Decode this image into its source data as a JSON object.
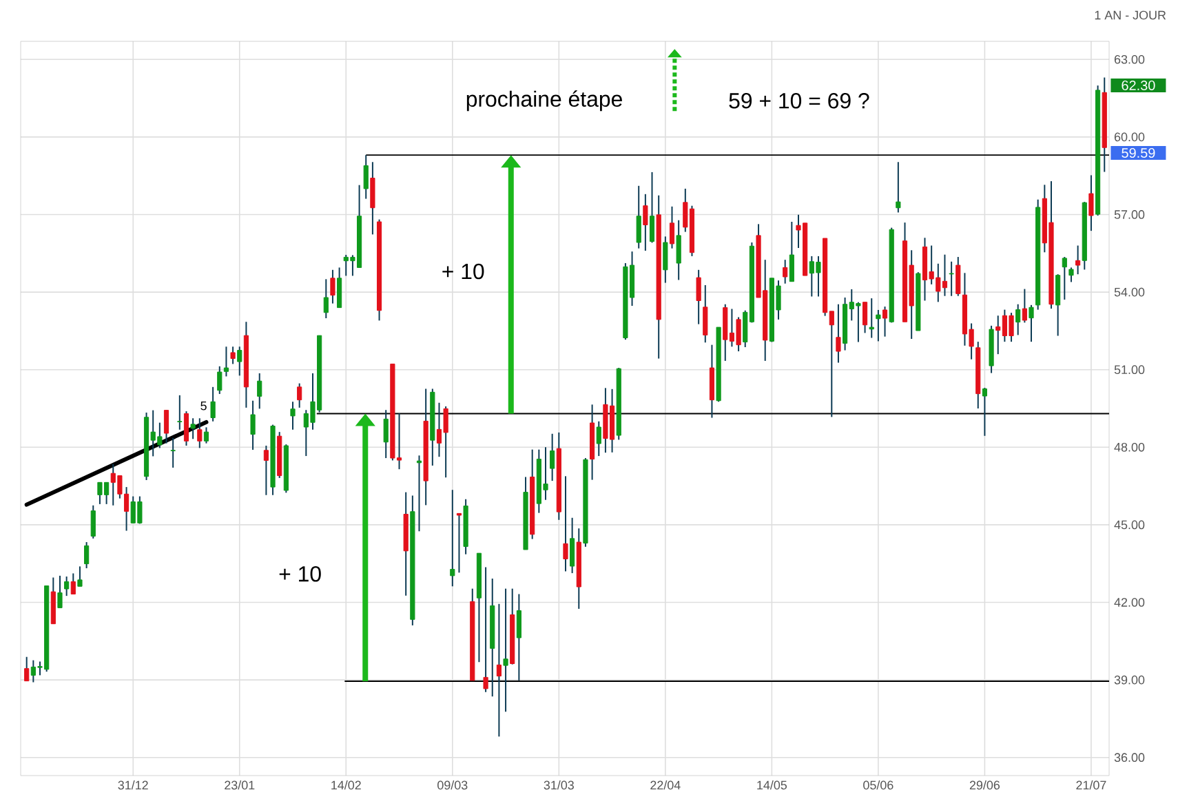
{
  "chart_data": {
    "type": "candlestick",
    "subtitle": "1 AN - JOUR",
    "categories": [
      null,
      null,
      null,
      null,
      null,
      null,
      null,
      null,
      null,
      null,
      null,
      null,
      null,
      null,
      null,
      null,
      "31/12",
      null,
      null,
      null,
      null,
      null,
      null,
      null,
      null,
      null,
      null,
      null,
      null,
      null,
      null,
      null,
      "23/01",
      null,
      null,
      null,
      null,
      null,
      null,
      null,
      null,
      null,
      null,
      null,
      null,
      null,
      null,
      null,
      "14/02",
      null,
      null,
      null,
      null,
      null,
      null,
      null,
      null,
      null,
      null,
      null,
      null,
      null,
      null,
      null,
      "09/03",
      null,
      null,
      null,
      null,
      null,
      null,
      null,
      null,
      null,
      null,
      null,
      null,
      null,
      null,
      null,
      "31/03",
      null,
      null,
      null,
      null,
      null,
      null,
      null,
      null,
      null,
      null,
      null,
      null,
      null,
      null,
      null,
      "22/04",
      null,
      null,
      null,
      null,
      null,
      null,
      null,
      null,
      null,
      null,
      null,
      null,
      null,
      null,
      null,
      "14/05",
      null,
      null,
      null,
      null,
      null,
      null,
      null,
      null,
      null,
      null,
      null,
      null,
      null,
      null,
      null,
      "05/06",
      null,
      null,
      null,
      null,
      null,
      null,
      null,
      null,
      null,
      null,
      null,
      null,
      null,
      null,
      null,
      "29/06",
      null,
      null,
      null,
      null,
      null,
      null,
      null,
      null,
      null,
      null,
      null,
      null,
      null,
      null,
      null,
      "21/07",
      null,
      null
    ],
    "ohlc": [
      [
        39.44,
        39.89,
        38.96,
        38.96
      ],
      [
        39.18,
        39.76,
        38.91,
        39.5
      ],
      [
        39.48,
        39.71,
        39.18,
        39.52
      ],
      [
        39.41,
        42.64,
        39.32,
        42.64
      ],
      [
        42.41,
        42.96,
        41.17,
        41.17
      ],
      [
        41.79,
        43.03,
        41.79,
        42.37
      ],
      [
        42.52,
        43.0,
        42.25,
        42.8
      ],
      [
        42.8,
        43.12,
        42.32,
        42.32
      ],
      [
        42.62,
        43.39,
        42.62,
        42.87
      ],
      [
        43.49,
        44.33,
        43.32,
        44.19
      ],
      [
        44.56,
        45.75,
        44.47,
        45.54
      ],
      [
        46.16,
        46.64,
        45.8,
        46.64
      ],
      [
        46.16,
        46.64,
        45.8,
        46.64
      ],
      [
        46.99,
        47.35,
        45.75,
        46.64
      ],
      [
        46.9,
        46.9,
        46.02,
        46.19
      ],
      [
        46.19,
        46.46,
        44.77,
        45.52
      ],
      [
        45.07,
        46.1,
        45.07,
        45.89
      ],
      [
        45.07,
        46.1,
        45.04,
        45.89
      ],
      [
        46.87,
        49.34,
        46.73,
        49.16
      ],
      [
        48.27,
        49.43,
        47.65,
        48.59
      ],
      [
        48.09,
        48.95,
        47.97,
        48.41
      ],
      [
        49.43,
        49.43,
        48.15,
        48.54
      ],
      [
        47.86,
        48.36,
        47.21,
        47.88
      ],
      [
        48.98,
        50.01,
        48.68,
        49.0
      ],
      [
        49.3,
        49.39,
        48.06,
        48.24
      ],
      [
        48.73,
        49.12,
        48.32,
        48.89
      ],
      [
        48.68,
        49.12,
        47.97,
        48.24
      ],
      [
        48.24,
        48.77,
        48.15,
        48.59
      ],
      [
        49.14,
        50.33,
        49.0,
        49.76
      ],
      [
        50.2,
        51.13,
        50.06,
        50.91
      ],
      [
        50.93,
        51.89,
        50.74,
        51.07
      ],
      [
        51.66,
        51.89,
        51.22,
        51.43
      ],
      [
        51.31,
        51.89,
        50.77,
        51.75
      ],
      [
        52.32,
        52.85,
        49.53,
        50.33
      ],
      [
        48.5,
        49.8,
        47.9,
        49.26
      ],
      [
        49.97,
        50.86,
        49.49,
        50.56
      ],
      [
        47.88,
        48.06,
        46.15,
        47.49
      ],
      [
        46.46,
        48.87,
        46.15,
        48.82
      ],
      [
        48.43,
        48.59,
        46.81,
        46.9
      ],
      [
        46.33,
        48.11,
        46.24,
        48.06
      ],
      [
        49.21,
        49.76,
        48.68,
        49.48
      ],
      [
        50.33,
        50.47,
        49.53,
        49.83
      ],
      [
        48.78,
        49.44,
        47.66,
        49.3
      ],
      [
        48.96,
        50.86,
        48.68,
        49.76
      ],
      [
        49.44,
        52.32,
        49.35,
        52.32
      ],
      [
        53.21,
        54.5,
        52.99,
        53.79
      ],
      [
        54.54,
        54.86,
        53.56,
        53.88
      ],
      [
        53.4,
        54.95,
        53.4,
        54.54
      ],
      [
        55.21,
        55.44,
        54.63,
        55.35
      ],
      [
        55.21,
        55.43,
        54.63,
        55.35
      ],
      [
        54.95,
        58.14,
        54.95,
        56.94
      ],
      [
        58.0,
        59.3,
        57.61,
        58.89
      ],
      [
        58.41,
        59.03,
        56.23,
        57.26
      ],
      [
        56.72,
        56.81,
        52.9,
        53.29
      ],
      [
        48.2,
        49.44,
        47.58,
        49.09
      ],
      [
        51.22,
        51.22,
        47.49,
        47.58
      ],
      [
        47.59,
        49.31,
        47.15,
        47.5
      ],
      [
        45.41,
        46.26,
        42.26,
        43.99
      ],
      [
        41.34,
        46.13,
        41.11,
        45.51
      ],
      [
        47.4,
        47.68,
        44.75,
        47.47
      ],
      [
        49.01,
        50.26,
        45.76,
        46.7
      ],
      [
        48.27,
        50.26,
        47.29,
        50.13
      ],
      [
        48.69,
        49.72,
        47.63,
        48.16
      ],
      [
        49.49,
        49.58,
        46.83,
        48.57
      ],
      [
        43.03,
        46.35,
        42.62,
        43.28
      ],
      [
        45.44,
        45.44,
        43.15,
        45.37
      ],
      [
        44.16,
        45.99,
        43.86,
        45.73
      ],
      [
        42.03,
        42.53,
        38.98,
        38.98
      ],
      [
        42.17,
        43.9,
        39.69,
        43.9
      ],
      [
        39.1,
        43.36,
        38.53,
        38.66
      ],
      [
        40.22,
        42.92,
        38.36,
        41.87
      ],
      [
        39.58,
        41.94,
        36.81,
        39.15
      ],
      [
        39.56,
        42.53,
        37.77,
        39.81
      ],
      [
        41.52,
        42.53,
        39.6,
        39.63
      ],
      [
        40.63,
        42.32,
        38.98,
        41.68
      ],
      [
        44.04,
        46.85,
        44.04,
        46.26
      ],
      [
        46.85,
        47.91,
        44.45,
        44.63
      ],
      [
        45.82,
        47.91,
        45.46,
        47.54
      ],
      [
        46.35,
        48.0,
        45.96,
        46.58
      ],
      [
        47.18,
        48.52,
        46.7,
        47.86
      ],
      [
        47.95,
        48.57,
        45.19,
        45.5
      ],
      [
        44.27,
        46.88,
        43.2,
        43.68
      ],
      [
        43.4,
        45.27,
        43.13,
        44.47
      ],
      [
        44.33,
        44.86,
        41.75,
        42.6
      ],
      [
        44.29,
        47.58,
        44.15,
        47.52
      ],
      [
        48.94,
        49.65,
        46.74,
        47.54
      ],
      [
        48.14,
        49.0,
        47.66,
        48.78
      ],
      [
        49.65,
        50.29,
        47.79,
        48.34
      ],
      [
        49.6,
        50.25,
        47.8,
        48.3
      ],
      [
        48.46,
        51.07,
        48.29,
        51.04
      ],
      [
        52.23,
        55.12,
        52.16,
        54.98
      ],
      [
        53.79,
        55.57,
        53.47,
        55.04
      ],
      [
        55.92,
        58.11,
        55.69,
        56.94
      ],
      [
        57.34,
        57.79,
        55.6,
        56.6
      ],
      [
        55.96,
        58.64,
        55.91,
        56.94
      ],
      [
        56.99,
        57.74,
        51.43,
        52.94
      ],
      [
        54.86,
        56.15,
        54.36,
        55.92
      ],
      [
        56.67,
        57.31,
        55.69,
        55.87
      ],
      [
        55.12,
        56.78,
        54.47,
        56.19
      ],
      [
        57.47,
        58.0,
        56.33,
        56.51
      ],
      [
        57.22,
        57.34,
        55.39,
        55.53
      ],
      [
        54.56,
        54.86,
        52.76,
        53.67
      ],
      [
        53.42,
        54.27,
        52.05,
        52.34
      ],
      [
        51.07,
        51.96,
        49.14,
        49.83
      ],
      [
        49.8,
        52.64,
        49.76,
        52.64
      ],
      [
        53.4,
        53.53,
        51.34,
        52.16
      ],
      [
        52.42,
        53.35,
        51.89,
        52.1
      ],
      [
        52.94,
        53.03,
        51.71,
        51.96
      ],
      [
        52.07,
        53.29,
        51.87,
        53.22
      ],
      [
        52.85,
        55.92,
        52.82,
        55.78
      ],
      [
        56.19,
        56.63,
        53.79,
        53.79
      ],
      [
        54.06,
        55.25,
        51.34,
        52.14
      ],
      [
        52.1,
        54.54,
        52.07,
        54.54
      ],
      [
        53.31,
        54.45,
        52.94,
        54.24
      ],
      [
        54.95,
        55.25,
        54.33,
        54.59
      ],
      [
        54.41,
        56.72,
        54.41,
        55.44
      ],
      [
        56.58,
        56.99,
        55.71,
        56.4
      ],
      [
        56.67,
        56.67,
        54.64,
        54.64
      ],
      [
        54.73,
        55.39,
        53.83,
        55.18
      ],
      [
        54.75,
        55.39,
        53.83,
        55.16
      ],
      [
        56.08,
        56.08,
        53.08,
        53.21
      ],
      [
        53.26,
        53.26,
        49.17,
        52.73
      ],
      [
        52.25,
        53.53,
        51.27,
        51.71
      ],
      [
        52.02,
        53.79,
        51.75,
        53.53
      ],
      [
        53.35,
        54.11,
        52.9,
        53.61
      ],
      [
        53.47,
        53.61,
        52.07,
        53.56
      ],
      [
        53.61,
        53.61,
        52.42,
        52.73
      ],
      [
        52.57,
        53.76,
        52.23,
        52.64
      ],
      [
        52.97,
        53.31,
        52.1,
        53.12
      ],
      [
        53.31,
        53.44,
        52.28,
        52.99
      ],
      [
        52.85,
        56.49,
        52.82,
        56.42
      ],
      [
        57.26,
        59.03,
        57.08,
        57.49
      ],
      [
        55.98,
        56.69,
        52.85,
        52.85
      ],
      [
        55.04,
        55.62,
        52.19,
        53.47
      ],
      [
        52.51,
        54.77,
        52.51,
        54.72
      ],
      [
        55.75,
        56.1,
        53.67,
        54.47
      ],
      [
        54.79,
        55.8,
        54.3,
        54.51
      ],
      [
        54.56,
        55.1,
        53.62,
        54.03
      ],
      [
        54.42,
        55.45,
        53.85,
        54.17
      ],
      [
        54.7,
        55.18,
        53.85,
        54.72
      ],
      [
        55.04,
        55.36,
        53.85,
        53.94
      ],
      [
        53.89,
        54.74,
        51.93,
        52.38
      ],
      [
        52.56,
        52.79,
        51.4,
        51.9
      ],
      [
        51.85,
        52.08,
        49.5,
        50.07
      ],
      [
        49.98,
        50.3,
        48.44,
        50.26
      ],
      [
        51.15,
        52.7,
        50.87,
        52.56
      ],
      [
        52.66,
        53.09,
        51.6,
        52.52
      ],
      [
        53.09,
        53.32,
        52.08,
        52.31
      ],
      [
        53.09,
        53.2,
        52.08,
        52.31
      ],
      [
        52.84,
        53.53,
        52.34,
        53.32
      ],
      [
        53.36,
        54.12,
        52.82,
        52.91
      ],
      [
        53.0,
        53.5,
        52.08,
        53.41
      ],
      [
        53.5,
        57.58,
        53.32,
        57.28
      ],
      [
        57.62,
        58.15,
        55.54,
        55.9
      ],
      [
        56.69,
        58.29,
        53.36,
        53.53
      ],
      [
        53.5,
        54.69,
        52.31,
        54.65
      ],
      [
        54.97,
        55.36,
        53.71,
        55.31
      ],
      [
        54.65,
        54.95,
        54.39,
        54.88
      ],
      [
        55.22,
        55.8,
        54.69,
        55.04
      ],
      [
        55.22,
        57.49,
        54.87,
        57.46
      ],
      [
        57.81,
        58.52,
        56.37,
        56.96
      ],
      [
        57.01,
        61.99,
        56.96,
        61.81
      ],
      [
        61.72,
        62.3,
        58.65,
        59.59
      ]
    ],
    "colors": [
      "#e3111b",
      "#0f9a1c",
      "#0f9a1c",
      "#0f9a1c",
      "#e3111b",
      "#0f9a1c",
      "#0f9a1c",
      "#e3111b",
      "#0f9a1c",
      "#0f9a1c",
      "#0f9a1c",
      "#0f9a1c",
      "#0f9a1c",
      "#e3111b",
      "#e3111b",
      "#e3111b",
      "#0f9a1c",
      "#0f9a1c",
      "#0f9a1c",
      "#0f9a1c",
      "#0f9a1c",
      "#e3111b",
      "#0f9a1c",
      "#0f9a1c",
      "#e3111b",
      "#0f9a1c",
      "#e3111b",
      "#0f9a1c",
      "#0f9a1c",
      "#0f9a1c",
      "#0f9a1c",
      "#e3111b",
      "#0f9a1c",
      "#e3111b",
      "#0f9a1c",
      "#0f9a1c",
      "#e3111b",
      "#0f9a1c",
      "#e3111b",
      "#0f9a1c",
      "#0f9a1c",
      "#e3111b",
      "#0f9a1c",
      "#0f9a1c",
      "#0f9a1c",
      "#0f9a1c",
      "#e3111b",
      "#0f9a1c",
      "#0f9a1c",
      "#0f9a1c",
      "#0f9a1c",
      "#0f9a1c",
      "#e3111b",
      "#e3111b",
      "#0f9a1c",
      "#e3111b",
      "#e3111b",
      "#e3111b",
      "#0f9a1c",
      "#0f9a1c",
      "#e3111b",
      "#0f9a1c",
      "#e3111b",
      "#e3111b",
      "#0f9a1c",
      "#e3111b",
      "#0f9a1c",
      "#e3111b",
      "#0f9a1c",
      "#e3111b",
      "#0f9a1c",
      "#e3111b",
      "#0f9a1c",
      "#e3111b",
      "#0f9a1c",
      "#0f9a1c",
      "#e3111b",
      "#0f9a1c",
      "#0f9a1c",
      "#0f9a1c",
      "#e3111b",
      "#e3111b",
      "#0f9a1c",
      "#e3111b",
      "#0f9a1c",
      "#e3111b",
      "#0f9a1c",
      "#e3111b",
      "#e3111b",
      "#0f9a1c",
      "#0f9a1c",
      "#0f9a1c",
      "#0f9a1c",
      "#e3111b",
      "#0f9a1c",
      "#e3111b",
      "#0f9a1c",
      "#e3111b",
      "#0f9a1c",
      "#e3111b",
      "#e3111b",
      "#e3111b",
      "#e3111b",
      "#e3111b",
      "#0f9a1c",
      "#e3111b",
      "#e3111b",
      "#e3111b",
      "#0f9a1c",
      "#0f9a1c",
      "#e3111b",
      "#e3111b",
      "#0f9a1c",
      "#0f9a1c",
      "#e3111b",
      "#0f9a1c",
      "#e3111b",
      "#e3111b",
      "#0f9a1c",
      "#0f9a1c",
      "#e3111b",
      "#e3111b",
      "#e3111b",
      "#0f9a1c",
      "#0f9a1c",
      "#0f9a1c",
      "#e3111b",
      "#0f9a1c",
      "#0f9a1c",
      "#e3111b",
      "#0f9a1c",
      "#0f9a1c",
      "#e3111b",
      "#e3111b",
      "#0f9a1c",
      "#e3111b",
      "#e3111b",
      "#e3111b",
      "#e3111b",
      "#0f9a1c",
      "#e3111b",
      "#e3111b",
      "#e3111b",
      "#e3111b",
      "#0f9a1c",
      "#0f9a1c",
      "#e3111b",
      "#e3111b",
      "#e3111b",
      "#0f9a1c",
      "#e3111b",
      "#0f9a1c",
      "#0f9a1c",
      "#e3111b",
      "#e3111b",
      "#0f9a1c",
      "#0f9a1c",
      "#0f9a1c",
      "#e3111b",
      "#0f9a1c",
      "#e3111b",
      "#0f9a1c",
      "#e3111b"
    ],
    "ylim": [
      35.3,
      63.7
    ],
    "yticks": [
      {
        "value": 36,
        "label": "36.00"
      },
      {
        "value": 39,
        "label": "39.00"
      },
      {
        "value": 42,
        "label": "42.00"
      },
      {
        "value": 45,
        "label": "45.00"
      },
      {
        "value": 48,
        "label": "48.00"
      },
      {
        "value": 51,
        "label": "51.00"
      },
      {
        "value": 54,
        "label": "54.00"
      },
      {
        "value": 57,
        "label": "57.00"
      },
      {
        "value": 60,
        "label": "60.00"
      },
      {
        "value": 63,
        "label": "63.00"
      }
    ],
    "grid": true,
    "ref_lines": [
      {
        "axis": "y",
        "value": 59.3,
        "color": "#000000"
      },
      {
        "axis": "y",
        "value": 49.3,
        "color": "#000000"
      },
      {
        "axis": "y",
        "value": 38.95,
        "color": "#000000"
      }
    ],
    "series": [
      {
        "type": "line",
        "values": [
          45.78,
          null,
          null,
          null,
          null,
          null,
          null,
          null,
          null,
          null,
          null,
          null,
          null,
          null,
          null,
          null,
          null,
          null,
          null,
          null,
          null,
          null,
          null,
          null,
          null,
          null,
          null,
          48.97,
          null,
          null,
          null,
          null,
          null,
          null,
          null,
          null,
          null,
          null,
          null,
          null,
          null,
          null,
          null,
          null,
          null,
          null,
          null,
          null,
          null,
          null,
          null,
          null,
          null,
          null,
          null,
          null,
          null,
          null,
          null,
          null,
          null,
          null,
          null,
          null,
          null,
          null,
          null,
          null,
          null,
          null,
          null,
          null,
          null,
          null,
          null,
          null,
          null,
          null,
          null,
          null,
          null,
          null,
          null,
          null,
          null,
          null,
          null,
          null,
          null,
          null,
          null,
          null,
          null,
          null,
          null,
          null,
          null,
          null,
          null,
          null,
          null,
          null,
          null,
          null,
          null,
          null,
          null,
          null,
          null,
          null,
          null,
          null,
          null,
          null,
          null,
          null,
          null,
          null,
          null,
          null,
          null,
          null,
          null,
          null,
          null,
          null,
          null,
          null,
          null,
          null,
          null,
          null,
          null,
          null,
          null,
          null,
          null,
          null,
          null,
          null,
          null,
          null,
          null,
          null,
          null,
          null,
          null,
          null,
          null,
          null,
          null,
          null,
          null,
          null,
          null,
          null,
          null,
          null,
          null,
          null,
          null,
          null,
          null
        ],
        "color": "#000000"
      }
    ],
    "annotations": [
      "prochaine étape",
      "59 + 10 = 69 ?",
      "+ 10",
      "+ 10",
      "5",
      "62.30",
      "59.59"
    ]
  }
}
